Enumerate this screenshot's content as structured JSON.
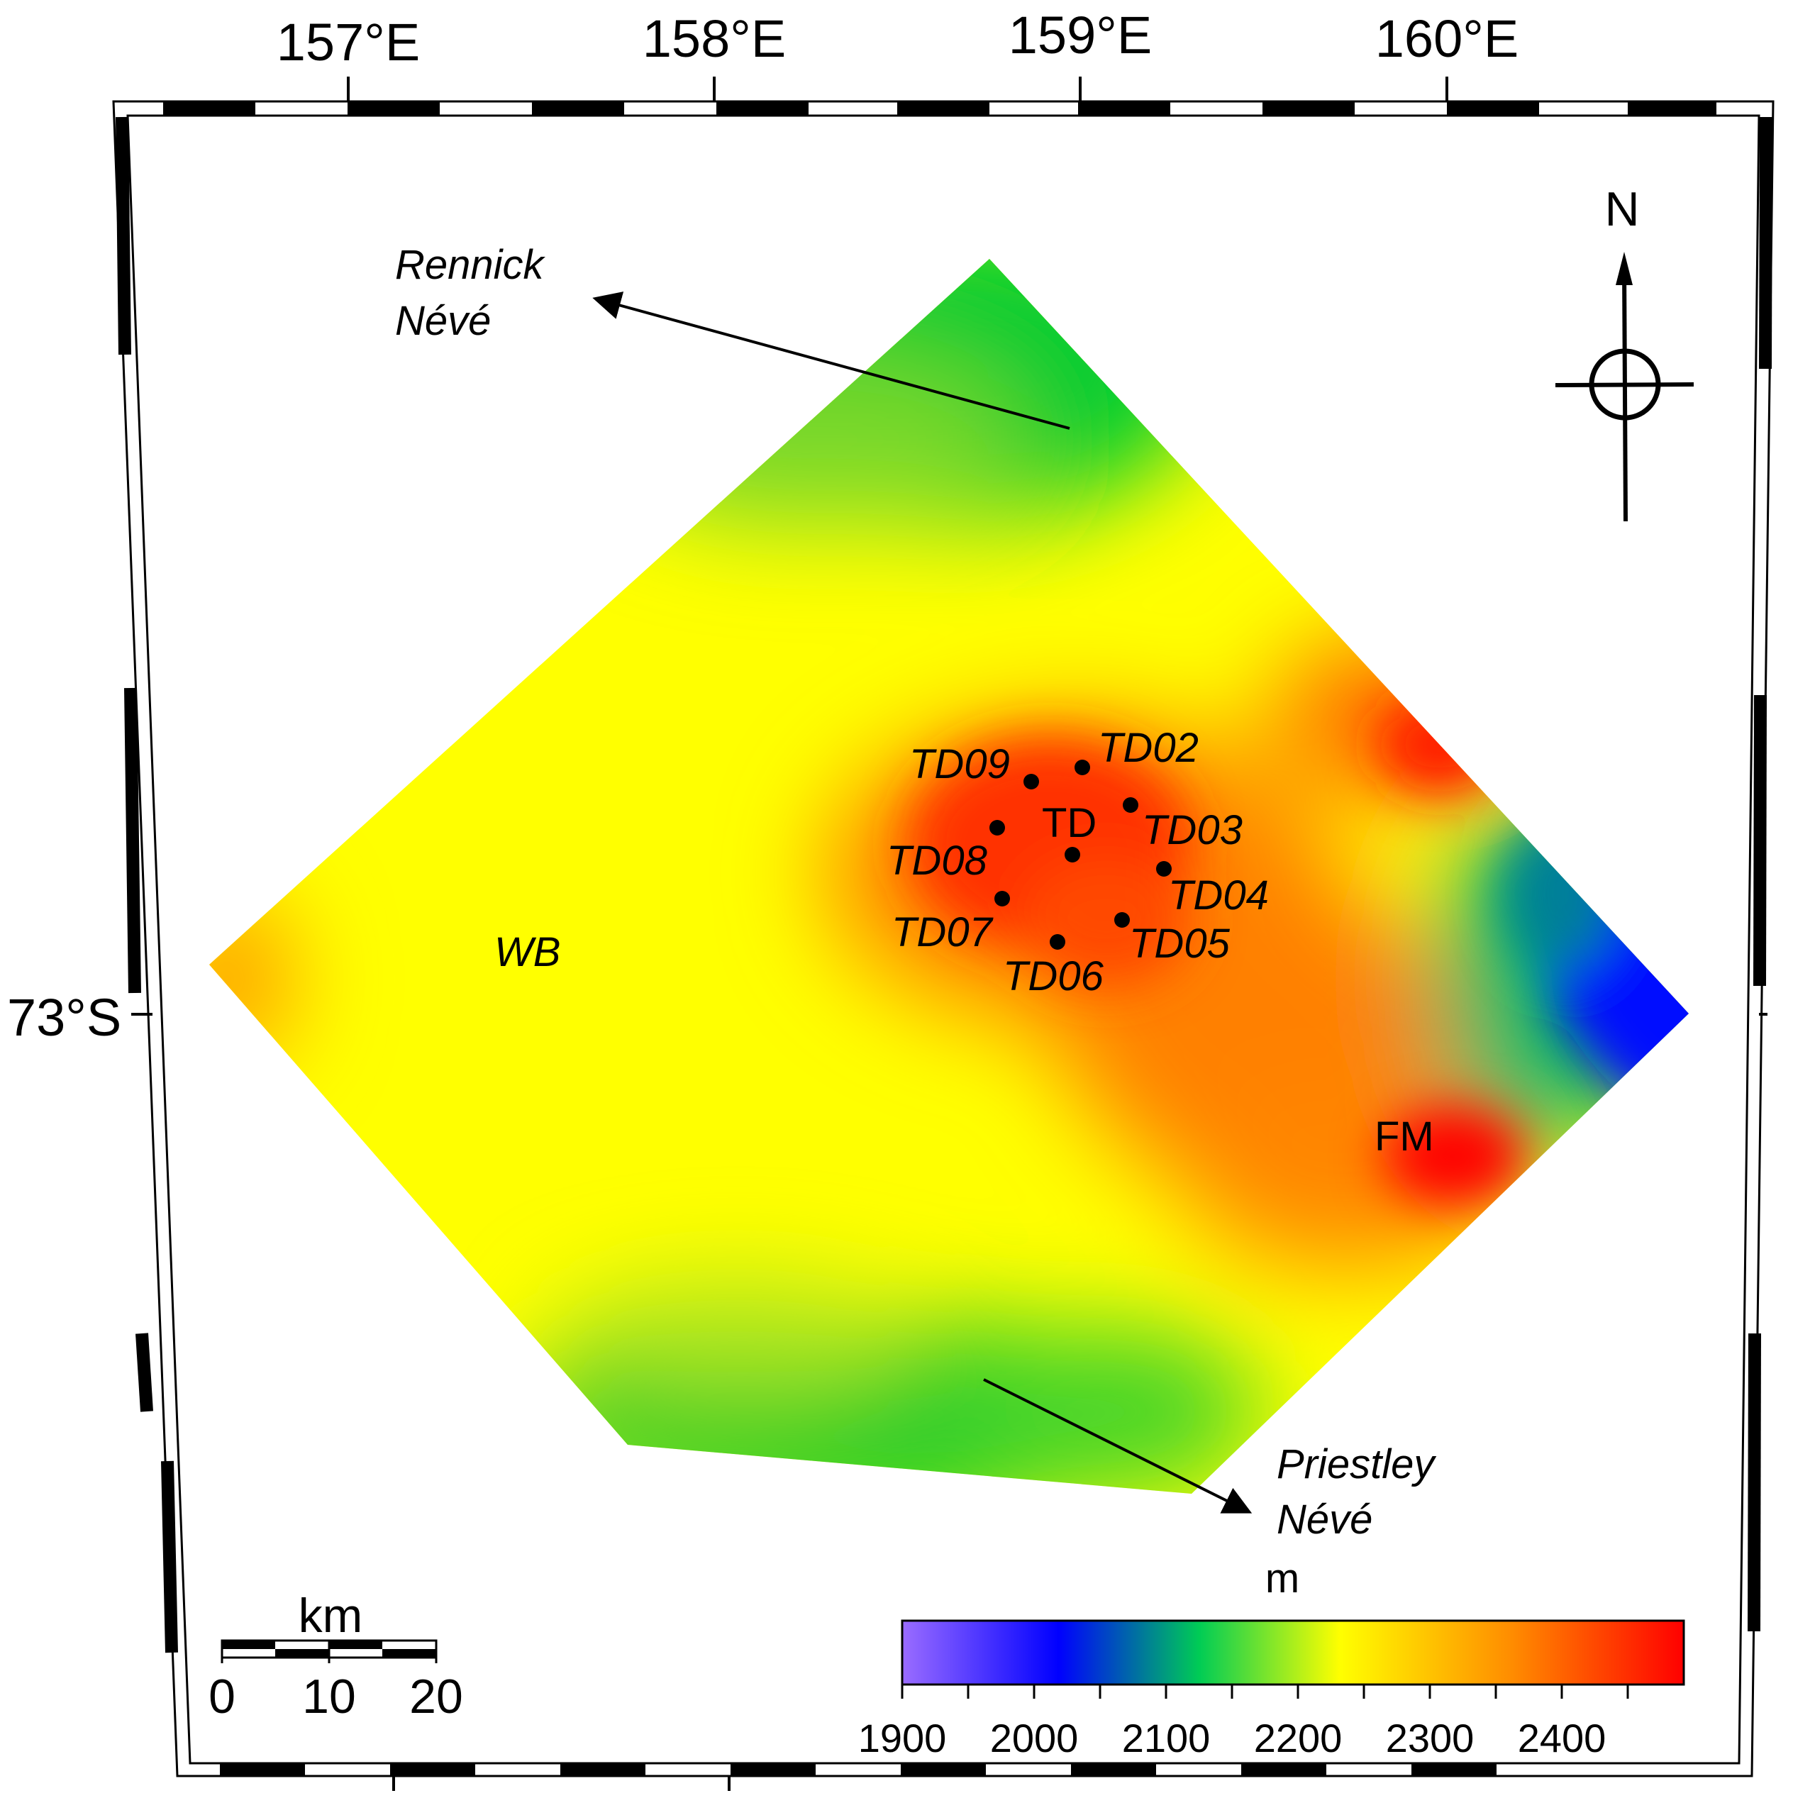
{
  "graticule": {
    "lon_labels": [
      "157°E",
      "158°E",
      "159°E",
      "160°E"
    ],
    "lat_labels": [
      "73°S"
    ]
  },
  "north_arrow": {
    "label": "N"
  },
  "places": {
    "rennick_line1": "Rennick",
    "rennick_line2": "Névé",
    "priestley_line1": "Priestley",
    "priestley_line2": "Névé",
    "wb": "WB",
    "fm": "FM",
    "td": "TD"
  },
  "sites": [
    {
      "id": "TD02",
      "label": "TD02"
    },
    {
      "id": "TD03",
      "label": "TD03"
    },
    {
      "id": "TD04",
      "label": "TD04"
    },
    {
      "id": "TD05",
      "label": "TD05"
    },
    {
      "id": "TD06",
      "label": "TD06"
    },
    {
      "id": "TD07",
      "label": "TD07"
    },
    {
      "id": "TD08",
      "label": "TD08"
    },
    {
      "id": "TD09",
      "label": "TD09"
    }
  ],
  "scale_bar": {
    "unit": "km",
    "ticks": [
      "0",
      "10",
      "20"
    ]
  },
  "legend": {
    "unit": "m",
    "ticks": [
      "1900",
      "2000",
      "2100",
      "2200",
      "2300",
      "2400"
    ],
    "colors": [
      "#9a6cff",
      "#0000ff",
      "#00c85a",
      "#ffff00",
      "#ff8c00",
      "#ff0000"
    ]
  }
}
